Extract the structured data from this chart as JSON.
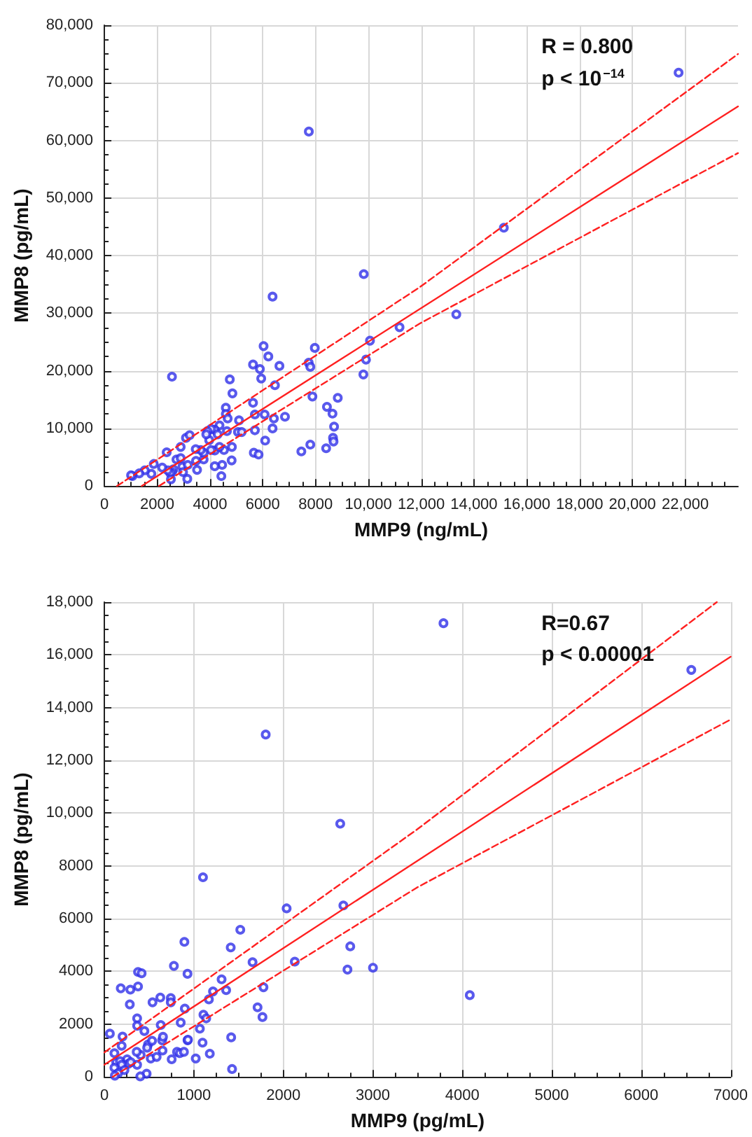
{
  "chart_data": [
    {
      "type": "scatter",
      "xlabel": "MMP9 (ng/mL)",
      "ylabel": "MMP8 (pg/mL)",
      "annotations": [
        "R = 0.800",
        "p < 10$^{−14}$"
      ],
      "xlim": [
        0,
        24000
      ],
      "xticks": [
        0,
        2000,
        4000,
        6000,
        8000,
        {
          "value": 10000,
          "label": "10,000"
        },
        {
          "value": 12000,
          "label": "12,000"
        },
        {
          "value": 14000,
          "label": "14,000"
        },
        {
          "value": 16000,
          "label": "16,000"
        },
        {
          "value": 18000,
          "label": "18,000"
        },
        {
          "value": 20000,
          "label": "20,000"
        },
        {
          "value": 22000,
          "label": "22,000"
        }
      ],
      "ylim": [
        0,
        80000
      ],
      "yticks": [
        0,
        {
          "value": 10000,
          "label": "10,000"
        },
        {
          "value": 20000,
          "label": "20,000"
        },
        {
          "value": 30000,
          "label": "30,000"
        },
        {
          "value": 40000,
          "label": "40,000"
        },
        {
          "value": 50000,
          "label": "50,000"
        },
        {
          "value": 60000,
          "label": "60,000"
        },
        {
          "value": 70000,
          "label": "70,000"
        },
        {
          "value": 80000,
          "label": "80,000"
        }
      ],
      "grid": true,
      "series": [
        {
          "color": "#2f2fe8",
          "marker": "circle",
          "x": [
            7744,
            9825,
            6370,
            11180,
            10060,
            9910,
            9810,
            6030,
            6210,
            7970,
            7740,
            7800,
            5630,
            5890,
            6630,
            5940,
            4750,
            2560,
            4850,
            6460,
            7880,
            8840,
            5630,
            4600,
            4600,
            4670,
            5700,
            6070,
            6420,
            6840,
            8430,
            8640,
            8700,
            8660,
            8680,
            5100,
            4640,
            5060,
            5200,
            5700,
            6370,
            6090,
            5660,
            5840,
            7460,
            7800,
            8400,
            4360,
            4180,
            4040,
            3900,
            3970,
            3860,
            4290,
            4180,
            4040,
            4530,
            4360,
            4830,
            4820,
            4460,
            4430,
            4180,
            3760,
            3760,
            3650,
            3460,
            3470,
            3510,
            3090,
            3230,
            2890,
            2360,
            2730,
            2890,
            2950,
            3160,
            3140,
            2980,
            2610,
            2560,
            2490,
            2520,
            2400,
            2190,
            1870,
            1780,
            1530,
            1320,
            1060,
            1010,
            21750,
            15130,
            13330
          ],
          "values": [
            61540,
            36790,
            32880,
            27570,
            25230,
            21950,
            19370,
            24290,
            22490,
            23980,
            21400,
            20700,
            21090,
            20310,
            20850,
            18670,
            18510,
            18980,
            16090,
            17500,
            15540,
            15310,
            14450,
            13590,
            12500,
            11720,
            12420,
            12420,
            11720,
            12030,
            13750,
            12570,
            10310,
            8360,
            7730,
            11400,
            9530,
            9370,
            9370,
            9680,
            10000,
            7890,
            5780,
            5470,
            6010,
            7190,
            6560,
            10540,
            9760,
            9920,
            9530,
            7970,
            8980,
            8980,
            6170,
            6250,
            6250,
            6790,
            6790,
            4450,
            3670,
            1720,
            3440,
            4610,
            5780,
            6250,
            6400,
            4370,
            2810,
            8360,
            8830,
            6790,
            5860,
            4610,
            4840,
            3360,
            3670,
            1250,
            2420,
            2890,
            2420,
            2260,
            1170,
            2730,
            3200,
            3830,
            2110,
            2730,
            2190,
            1720,
            1870,
            71760,
            44840,
            29800
          ]
        },
        {
          "type": "line",
          "color": "#ff2020",
          "marker": "none",
          "line_style": "solid",
          "x": [
            1411,
            24000
          ],
          "values": [
            0,
            65900
          ]
        },
        {
          "type": "line",
          "color": "#ff2020",
          "marker": "none",
          "line_style": "dashed",
          "x": [
            476,
            11940,
            24000
          ],
          "values": [
            0,
            34500,
            75000
          ]
        },
        {
          "type": "line",
          "color": "#ff2020",
          "marker": "none",
          "line_style": "dashed",
          "x": [
            2064,
            11940,
            24000
          ],
          "values": [
            0,
            28200,
            57800
          ]
        }
      ]
    },
    {
      "type": "scatter",
      "xlabel": "MMP9 (pg/mL)",
      "ylabel": "MMP8 (pg/mL)",
      "annotations": [
        "R=0.67",
        "p < 0.00001"
      ],
      "xlim": [
        0,
        7000
      ],
      "xticks": [
        0,
        1000,
        2000,
        3000,
        4000,
        5000,
        6000,
        7000
      ],
      "ylim": [
        0,
        18000
      ],
      "yticks": [
        0,
        2000,
        4000,
        6000,
        8000,
        {
          "value": 10000,
          "label": "10,000"
        },
        {
          "value": 12000,
          "label": "12,000"
        },
        {
          "value": 14000,
          "label": "14,000"
        },
        {
          "value": 16000,
          "label": "16,000"
        },
        {
          "value": 18000,
          "label": "18,000"
        }
      ],
      "grid": true,
      "series": [
        {
          "color": "#2f2fe8",
          "marker": "circle",
          "x": [
            1803,
            2636,
            1102,
            2671,
            2037,
            1519,
            2748,
            894,
            1412,
            777,
            929,
            1656,
            2128,
            2717,
            3002,
            376,
            416,
            376,
            183,
            290,
            1310,
            1214,
            1168,
            1361,
            1778,
            625,
            742,
            742,
            538,
            284,
            899,
            1712,
            1767,
            1107,
            1138,
            366,
            853,
            630,
            366,
            447,
            61,
            203,
            1067,
            1417,
            929,
            1097,
            645,
            655,
            650,
            488,
            533,
            478,
            406,
            518,
            193,
            112,
            361,
            366,
            254,
            269,
            295,
            132,
            173,
            193,
            224,
            112,
            152,
            117,
            472,
            401,
            812,
            843,
            889,
            934,
            1021,
            1178,
            1427,
            752,
            584,
            3790,
            6560,
            4084
          ],
          "values": [
            12980,
            9600,
            7570,
            6500,
            6390,
            5580,
            4950,
            5120,
            4910,
            4210,
            3910,
            4350,
            4370,
            4070,
            4140,
            3980,
            3930,
            3430,
            3360,
            3310,
            3700,
            3240,
            2940,
            3290,
            3400,
            3010,
            2990,
            2830,
            2830,
            2750,
            2590,
            2640,
            2270,
            2360,
            2220,
            2220,
            2060,
            1970,
            1940,
            1740,
            1640,
            1530,
            1830,
            1500,
            1390,
            1300,
            1390,
            1520,
            1000,
            1230,
            1370,
            1110,
            830,
            700,
            1180,
            900,
            950,
            460,
            670,
            500,
            560,
            560,
            600,
            460,
            260,
            350,
            140,
            50,
            120,
            20,
            950,
            900,
            950,
            1410,
            700,
            880,
            300,
            670,
            760,
            17200,
            15430,
            3100
          ]
        },
        {
          "type": "line",
          "color": "#ff2020",
          "marker": "none",
          "line_style": "solid",
          "x": [
            0,
            7000
          ],
          "values": [
            460,
            15930
          ]
        },
        {
          "type": "line",
          "color": "#ff2020",
          "marker": "none",
          "line_style": "dashed",
          "x": [
            0,
            3494,
            6845
          ],
          "values": [
            930,
            9380,
            18000
          ]
        },
        {
          "type": "line",
          "color": "#ff2020",
          "marker": "none",
          "line_style": "dashed",
          "x": [
            91,
            3494,
            7000
          ],
          "values": [
            0,
            7180,
            13550
          ]
        }
      ]
    }
  ]
}
